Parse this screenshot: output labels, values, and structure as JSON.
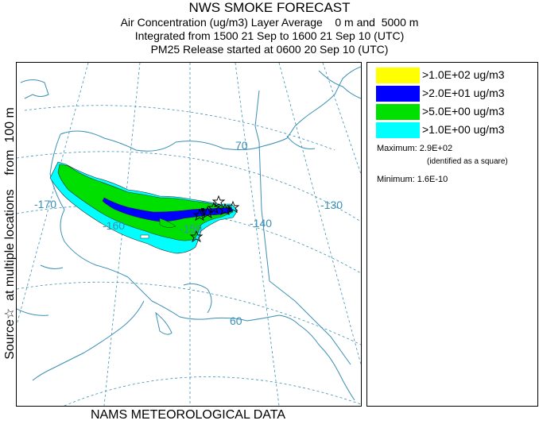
{
  "header": {
    "title": "NWS SMOKE FORECAST",
    "line1": "Air Concentration (ug/m3) Layer Average    0 m and  5000 m",
    "line2": "Integrated from 1500 21 Sep to 1600 21 Sep 10 (UTC)",
    "line3": "PM25 Release started at 0600 20 Sep 10 (UTC)"
  },
  "side_label": "Source☆  at multiple locations    from  100 m",
  "footer": "NAMS METEOROLOGICAL DATA",
  "map": {
    "labels": {
      "lon_170": "-170",
      "lon_160": "-160",
      "lon_150": "-150",
      "lon_140": "-140",
      "lon_130": "-130",
      "lat_70": "70",
      "lat_60": "60"
    },
    "colors": {
      "coast": "#3b8fb5",
      "grid": "#3b8fb5",
      "label": "#3b8fb5",
      "band_1": "#00ffff",
      "band_5": "#00e000",
      "band_20": "#0000ff",
      "band_100": "#ffff00"
    }
  },
  "legend": {
    "items": [
      {
        "label": ">1.0E+02 ug/m3",
        "color": "#ffff00"
      },
      {
        "label": ">2.0E+01 ug/m3",
        "color": "#0000ff"
      },
      {
        "label": ">5.0E+00 ug/m3",
        "color": "#00e000"
      },
      {
        "label": ">1.0E+00 ug/m3",
        "color": "#00ffff"
      }
    ],
    "maximum": "Maximum: 2.9E+02",
    "maximum_note": "(identified as a square)",
    "minimum": "Minimum: 1.6E-10"
  }
}
